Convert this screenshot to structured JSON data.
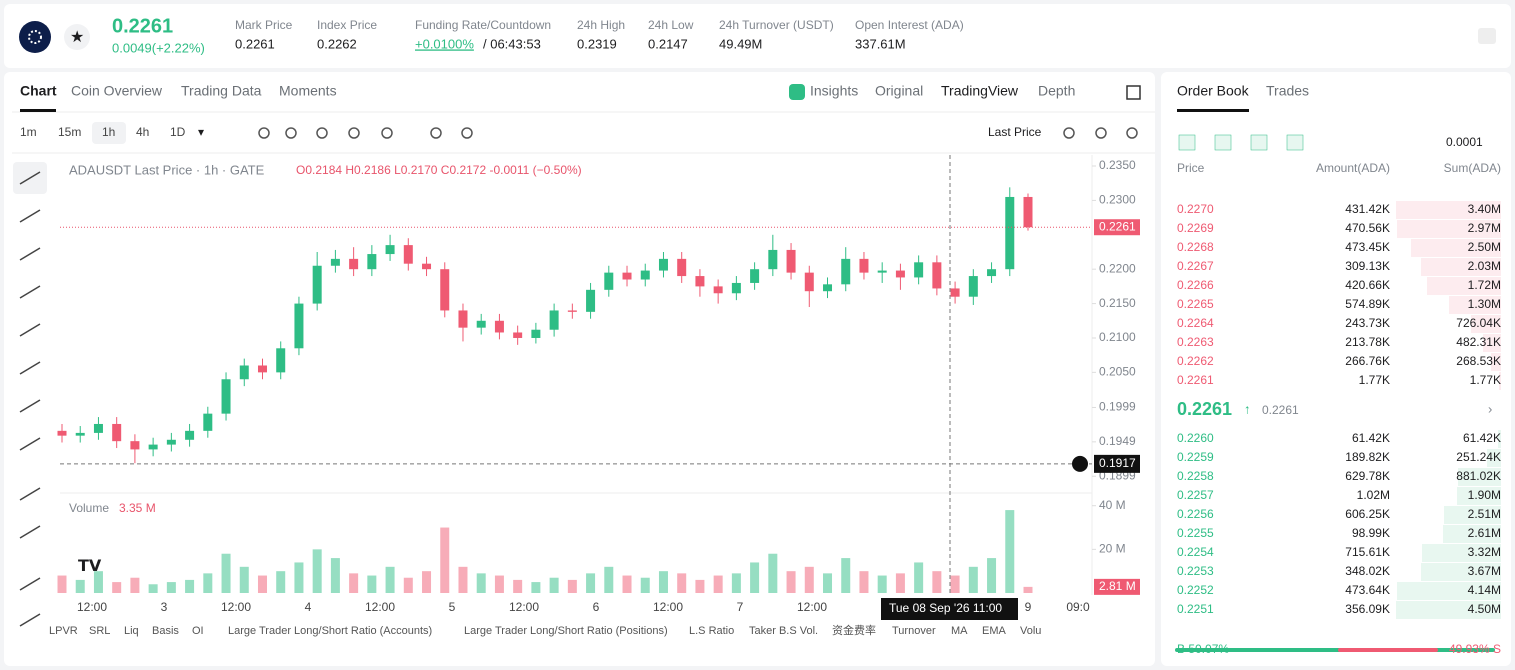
{
  "header": {
    "price": "0.2261",
    "change": "0.0049(+2.22%)",
    "stats": [
      {
        "label": "Mark Price",
        "value": "0.2261"
      },
      {
        "label": "Index Price",
        "value": "0.2262"
      },
      {
        "label": "Funding Rate/Countdown",
        "value": "+0.0100%",
        "countdown": "/ 06:43:53"
      },
      {
        "label": "24h High",
        "value": "0.2319"
      },
      {
        "label": "24h Low",
        "value": "0.2147"
      },
      {
        "label": "24h Turnover (USDT)",
        "value": "49.49M"
      },
      {
        "label": "Open Interest (ADA)",
        "value": "337.61M"
      }
    ]
  },
  "tabs": [
    "Chart",
    "Coin Overview",
    "Trading Data",
    "Moments"
  ],
  "view_tabs": [
    "Insights",
    "Original",
    "TradingView",
    "Depth"
  ],
  "intervals": [
    "1m",
    "15m",
    "1h",
    "4h",
    "1D"
  ],
  "price_source": "Last Price",
  "legend": {
    "title": "ADAUSDT Last Price · 1h · GATE",
    "ohlc": "O0.2184  H0.2186  L0.2170  C0.2172  -0.0011 (−0.50%)"
  },
  "chart_data": {
    "type": "candlestick",
    "up_color": "#2ebd85",
    "down_color": "#ef5a72",
    "open": [
      0.1965,
      0.1958,
      0.1962,
      0.1975,
      0.195,
      0.1938,
      0.1945,
      0.1952,
      0.1965,
      0.199,
      0.204,
      0.206,
      0.205,
      0.2085,
      0.215,
      0.2205,
      0.2215,
      0.22,
      0.2222,
      0.2235,
      0.2208,
      0.22,
      0.214,
      0.2115,
      0.2125,
      0.2108,
      0.21,
      0.2112,
      0.214,
      0.2138,
      0.217,
      0.2195,
      0.2185,
      0.2198,
      0.2215,
      0.219,
      0.2175,
      0.2165,
      0.218,
      0.22,
      0.2228,
      0.2195,
      0.2168,
      0.2178,
      0.2215,
      0.2195,
      0.2198,
      0.2188,
      0.221,
      0.2172,
      0.216,
      0.219,
      0.22,
      0.2305
    ],
    "high": [
      0.1975,
      0.1972,
      0.1985,
      0.1985,
      0.196,
      0.1955,
      0.1962,
      0.1975,
      0.2,
      0.205,
      0.207,
      0.207,
      0.2095,
      0.216,
      0.2225,
      0.2228,
      0.2232,
      0.2235,
      0.225,
      0.2245,
      0.2218,
      0.221,
      0.215,
      0.2135,
      0.2135,
      0.2118,
      0.2122,
      0.215,
      0.215,
      0.218,
      0.2205,
      0.2205,
      0.2208,
      0.2225,
      0.2225,
      0.22,
      0.2185,
      0.219,
      0.221,
      0.225,
      0.2238,
      0.2205,
      0.2188,
      0.2232,
      0.2225,
      0.221,
      0.2208,
      0.222,
      0.222,
      0.2182,
      0.22,
      0.221,
      0.2319,
      0.231
    ],
    "low": [
      0.1948,
      0.1948,
      0.1952,
      0.194,
      0.1918,
      0.1928,
      0.1935,
      0.1942,
      0.1955,
      0.198,
      0.203,
      0.204,
      0.204,
      0.2075,
      0.214,
      0.2195,
      0.219,
      0.219,
      0.2212,
      0.2198,
      0.219,
      0.213,
      0.2095,
      0.2105,
      0.2098,
      0.209,
      0.2092,
      0.2102,
      0.2128,
      0.2128,
      0.216,
      0.2175,
      0.2175,
      0.2188,
      0.218,
      0.216,
      0.215,
      0.2155,
      0.217,
      0.219,
      0.2185,
      0.2145,
      0.2158,
      0.2168,
      0.2185,
      0.218,
      0.217,
      0.2178,
      0.2162,
      0.215,
      0.2148,
      0.218,
      0.219,
      0.2256
    ],
    "close": [
      0.1958,
      0.1962,
      0.1975,
      0.195,
      0.1938,
      0.1945,
      0.1952,
      0.1965,
      0.199,
      0.204,
      0.206,
      0.205,
      0.2085,
      0.215,
      0.2205,
      0.2215,
      0.22,
      0.2222,
      0.2235,
      0.2208,
      0.22,
      0.214,
      0.2115,
      0.2125,
      0.2108,
      0.21,
      0.2112,
      0.214,
      0.2138,
      0.217,
      0.2195,
      0.2185,
      0.2198,
      0.2215,
      0.219,
      0.2175,
      0.2165,
      0.218,
      0.22,
      0.2228,
      0.2195,
      0.2168,
      0.2178,
      0.2215,
      0.2195,
      0.2198,
      0.2188,
      0.221,
      0.2172,
      0.216,
      0.219,
      0.22,
      0.2305,
      0.2261
    ],
    "ylim": [
      0.1879,
      0.2366
    ],
    "yticks": [
      {
        "value": 0.235,
        "label": "0.2350"
      },
      {
        "value": 0.23,
        "label": "0.2300"
      },
      {
        "value": 0.22,
        "label": "0.2200"
      },
      {
        "value": 0.215,
        "label": "0.2150"
      },
      {
        "value": 0.21,
        "label": "0.2100"
      },
      {
        "value": 0.205,
        "label": "0.2050"
      },
      0.1999,
      0.1949,
      0.1899
    ],
    "last_price": {
      "value": 0.2261,
      "label": "0.2261"
    },
    "crosshair_price": 0.1917,
    "crosshair_time": "Tue 08 Sep '26   11:00",
    "xlabels": [
      "12:00",
      "3",
      "12:00",
      "4",
      "12:00",
      "5",
      "12:00",
      "6",
      "12:00",
      "7",
      "12:00",
      "9",
      "09:0"
    ],
    "volume": {
      "label": "Volume",
      "current": "3.35 M",
      "ylim": [
        0,
        44
      ],
      "yticks": [
        {
          "value": 40,
          "label": "40 M"
        },
        {
          "value": 20,
          "label": "20 M"
        }
      ],
      "values": [
        8,
        6,
        10,
        5,
        7,
        4,
        5,
        6,
        9,
        18,
        12,
        8,
        10,
        14,
        20,
        16,
        9,
        8,
        12,
        7,
        10,
        30,
        12,
        9,
        8,
        6,
        5,
        7,
        6,
        9,
        12,
        8,
        7,
        10,
        9,
        6,
        8,
        9,
        14,
        18,
        10,
        12,
        9,
        16,
        10,
        8,
        9,
        14,
        10,
        8,
        12,
        16,
        38,
        2.81
      ],
      "last_label": "2.81 M"
    }
  },
  "indicators": [
    "LPVR",
    "SRL",
    "Liq",
    "Basis",
    "OI",
    "Large Trader Long/Short Ratio (Accounts)",
    "Large Trader Long/Short Ratio (Positions)",
    "L.S Ratio",
    "Taker B.S Vol.",
    "资金费率",
    "Turnover",
    "MA",
    "EMA",
    "Volu"
  ],
  "order_book": {
    "tabs": [
      "Order Book",
      "Trades"
    ],
    "tick": "0.0001",
    "columns": [
      "Price",
      "Amount(ADA)",
      "Sum(ADA)"
    ],
    "asks": [
      [
        "0.2270",
        "431.42K",
        "3.40M"
      ],
      [
        "0.2269",
        "470.56K",
        "2.97M"
      ],
      [
        "0.2268",
        "473.45K",
        "2.50M"
      ],
      [
        "0.2267",
        "309.13K",
        "2.03M"
      ],
      [
        "0.2266",
        "420.66K",
        "1.72M"
      ],
      [
        "0.2265",
        "574.89K",
        "1.30M"
      ],
      [
        "0.2264",
        "243.73K",
        "726.04K"
      ],
      [
        "0.2263",
        "213.78K",
        "482.31K"
      ],
      [
        "0.2262",
        "266.76K",
        "268.53K"
      ],
      [
        "0.2261",
        "1.77K",
        "1.77K"
      ]
    ],
    "last": "0.2261",
    "mark": "0.2261",
    "bids": [
      [
        "0.2260",
        "61.42K",
        "61.42K"
      ],
      [
        "0.2259",
        "189.82K",
        "251.24K"
      ],
      [
        "0.2258",
        "629.78K",
        "881.02K"
      ],
      [
        "0.2257",
        "1.02M",
        "1.90M"
      ],
      [
        "0.2256",
        "606.25K",
        "2.51M"
      ],
      [
        "0.2255",
        "98.99K",
        "2.61M"
      ],
      [
        "0.2254",
        "715.61K",
        "3.32M"
      ],
      [
        "0.2253",
        "348.02K",
        "3.67M"
      ],
      [
        "0.2252",
        "473.64K",
        "4.14M"
      ],
      [
        "0.2251",
        "356.09K",
        "4.50M"
      ]
    ],
    "buy_ratio": "B 50.07%",
    "sell_ratio": "49.93% S"
  }
}
